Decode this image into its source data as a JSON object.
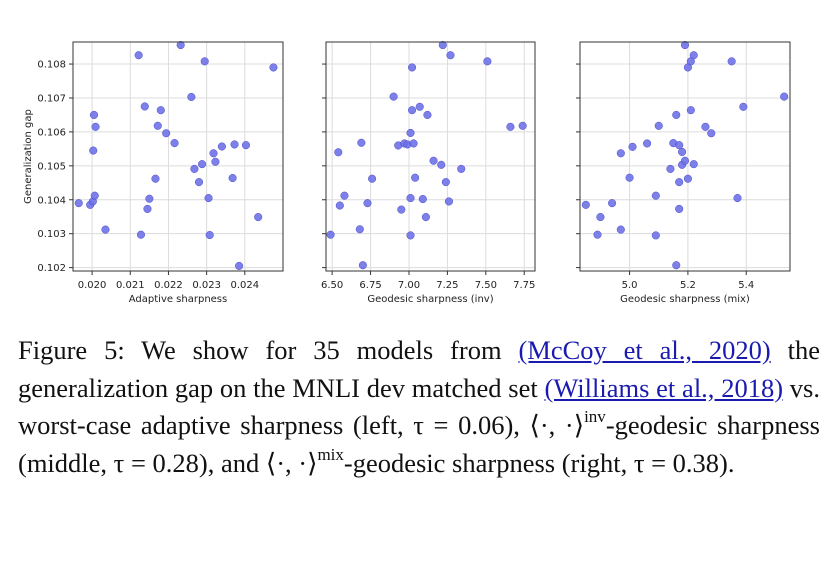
{
  "figure": {
    "caption": {
      "label": "Figure 5:",
      "t1": " We show for 35 models from ",
      "cite1": "(McCoy et al., 2020)",
      "t2": " the generalization gap on the MNLI dev matched set ",
      "cite2": "(Williams et al., 2018)",
      "t3": " vs. worst-case adaptive sharpness (left, τ = 0.06), ⟨·, ·⟩",
      "sup1": "inv",
      "t4": "-geodesic sharpness (middle, τ = 0.28), and ⟨·, ·⟩",
      "sup2": "mix",
      "t5": "-geodesic sharpness (right, τ = 0.38).",
      "colors": {
        "citation": "#1a1ab0"
      }
    }
  },
  "chart_data": [
    {
      "type": "scatter",
      "xlabel": "Adaptive sharpness",
      "ylabel": "Generalization gap",
      "xlim": [
        0.0195,
        0.025
      ],
      "ylim": [
        0.1019,
        0.10865
      ],
      "xticks": [
        0.02,
        0.021,
        0.022,
        0.023,
        0.024
      ],
      "xtick_labels": [
        "0.020",
        "0.021",
        "0.022",
        "0.023",
        "0.024"
      ],
      "yticks": [
        0.102,
        0.103,
        0.104,
        0.105,
        0.106,
        0.107,
        0.108
      ],
      "ytick_labels": [
        "0.102",
        "0.103",
        "0.104",
        "0.105",
        "0.106",
        "0.107",
        "0.108"
      ],
      "grid": true,
      "marker_color": "#6b6ee6",
      "x": [
        0.01965,
        0.01995,
        0.02002,
        0.02007,
        0.02003,
        0.02009,
        0.02005,
        0.02035,
        0.02122,
        0.02128,
        0.02138,
        0.02145,
        0.0215,
        0.02166,
        0.02172,
        0.0218,
        0.02194,
        0.02216,
        0.02232,
        0.0226,
        0.02268,
        0.0228,
        0.02288,
        0.02295,
        0.02308,
        0.02305,
        0.02318,
        0.02323,
        0.0234,
        0.02368,
        0.02373,
        0.02385,
        0.02403,
        0.02435,
        0.02475
      ],
      "y": [
        0.1039,
        0.10385,
        0.10395,
        0.10412,
        0.10545,
        0.10615,
        0.1065,
        0.10312,
        0.10826,
        0.10297,
        0.10675,
        0.10373,
        0.10403,
        0.10462,
        0.10618,
        0.10664,
        0.10596,
        0.10567,
        0.10856,
        0.10703,
        0.10491,
        0.10452,
        0.10505,
        0.10808,
        0.10296,
        0.10405,
        0.10537,
        0.10512,
        0.10557,
        0.10464,
        0.10563,
        0.10205,
        0.10561,
        0.10349,
        0.1079
      ]
    },
    {
      "type": "scatter",
      "xlabel": "Geodesic sharpness (inv)",
      "ylabel": "",
      "xlim": [
        6.46,
        7.82
      ],
      "ylim": [
        0.1019,
        0.10865
      ],
      "xticks": [
        6.5,
        6.75,
        7.0,
        7.25,
        7.5,
        7.75
      ],
      "xtick_labels": [
        "6.50",
        "6.75",
        "7.00",
        "7.25",
        "7.50",
        "7.75"
      ],
      "yticks": [
        0.102,
        0.103,
        0.104,
        0.105,
        0.106,
        0.107,
        0.108
      ],
      "ytick_labels": [],
      "grid": true,
      "marker_color": "#6b6ee6",
      "x": [
        6.49,
        6.54,
        6.55,
        6.58,
        6.68,
        6.69,
        6.7,
        6.73,
        6.76,
        6.9,
        6.93,
        6.95,
        6.97,
        6.99,
        7.01,
        7.01,
        7.02,
        7.02,
        7.03,
        7.04,
        7.07,
        7.09,
        7.11,
        7.12,
        7.16,
        7.21,
        7.22,
        7.24,
        7.26,
        7.27,
        7.34,
        7.51,
        7.66,
        7.74,
        7.01
      ],
      "y": [
        0.10297,
        0.1054,
        0.10383,
        0.10412,
        0.10313,
        0.10568,
        0.10207,
        0.1039,
        0.10462,
        0.10704,
        0.1056,
        0.10371,
        0.10566,
        0.10563,
        0.10597,
        0.10295,
        0.1079,
        0.10664,
        0.10566,
        0.10465,
        0.10674,
        0.10402,
        0.10349,
        0.1065,
        0.10515,
        0.10503,
        0.10856,
        0.10452,
        0.10395,
        0.10826,
        0.10491,
        0.10808,
        0.10615,
        0.10618,
        0.10405
      ]
    },
    {
      "type": "scatter",
      "xlabel": "Geodesic sharpness (mix)",
      "ylabel": "",
      "xlim": [
        4.83,
        5.55
      ],
      "ylim": [
        0.1019,
        0.10865
      ],
      "xticks": [
        5.0,
        5.2,
        5.4
      ],
      "xtick_labels": [
        "5.0",
        "5.2",
        "5.4"
      ],
      "yticks": [
        0.102,
        0.103,
        0.104,
        0.105,
        0.106,
        0.107,
        0.108
      ],
      "ytick_labels": [],
      "grid": true,
      "marker_color": "#6b6ee6",
      "x": [
        4.85,
        4.89,
        4.9,
        4.94,
        4.97,
        4.97,
        5.0,
        5.01,
        5.06,
        5.09,
        5.09,
        5.1,
        5.14,
        5.15,
        5.16,
        5.16,
        5.17,
        5.17,
        5.17,
        5.18,
        5.18,
        5.19,
        5.19,
        5.2,
        5.2,
        5.21,
        5.21,
        5.22,
        5.22,
        5.26,
        5.28,
        5.35,
        5.37,
        5.39,
        5.53
      ],
      "y": [
        0.10385,
        0.10297,
        0.10349,
        0.1039,
        0.10312,
        0.10537,
        0.10465,
        0.10556,
        0.10566,
        0.10412,
        0.10295,
        0.10618,
        0.10491,
        0.10567,
        0.10207,
        0.1065,
        0.10452,
        0.10373,
        0.10561,
        0.10541,
        0.10503,
        0.10856,
        0.10515,
        0.1079,
        0.10462,
        0.10664,
        0.10808,
        0.10826,
        0.10505,
        0.10615,
        0.10596,
        0.10808,
        0.10405,
        0.10674,
        0.10704
      ]
    }
  ]
}
